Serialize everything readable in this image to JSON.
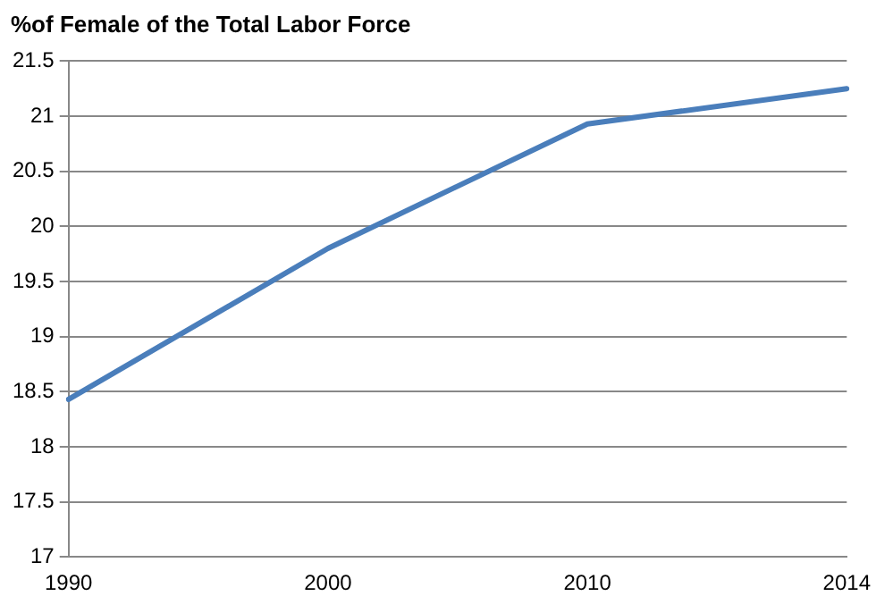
{
  "chart_data": {
    "type": "line",
    "title": "%of Female of the Total Labor Force",
    "categories": [
      "1990",
      "2000",
      "2010",
      "2014"
    ],
    "series": [
      {
        "color": "#4a7ebb",
        "values": [
          18.43,
          19.8,
          20.93,
          21.25
        ]
      }
    ],
    "ylim": [
      17,
      21.5
    ],
    "yticks": [
      17,
      17.5,
      18,
      18.5,
      19,
      19.5,
      20,
      20.5,
      21,
      21.5
    ],
    "grid": "y",
    "legend": false,
    "marker": "none",
    "line_style": "solid"
  }
}
